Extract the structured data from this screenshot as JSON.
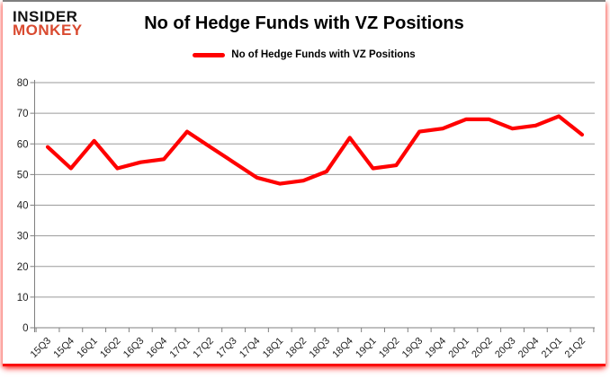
{
  "logo": {
    "line1": "INSIDER",
    "line2": "MONKEY"
  },
  "header": {
    "title": "No of Hedge Funds with VZ Positions"
  },
  "legend": {
    "label": "No of Hedge Funds with VZ Positions"
  },
  "colors": {
    "series_line": "#ff0000",
    "grid": "#9a9a9a",
    "axis": "#7f7f7f",
    "tick_text": "#1f1f1f",
    "logo_black": "#121212",
    "logo_red": "#d94a30",
    "frame_red_glow": "#fb0e0e",
    "frame_top_border": "#7f7f7f"
  },
  "chart_data": {
    "type": "line",
    "title": "No of Hedge Funds with VZ Positions",
    "legend_entries": [
      "No of Hedge Funds with VZ Positions"
    ],
    "legend_position": "top",
    "grid": true,
    "xlabel": "",
    "ylabel": "",
    "ylim": [
      0,
      80
    ],
    "yticks": [
      0,
      10,
      20,
      30,
      40,
      50,
      60,
      70,
      80
    ],
    "categories": [
      "15Q3",
      "15Q4",
      "16Q1",
      "16Q2",
      "16Q3",
      "16Q4",
      "17Q1",
      "17Q2",
      "17Q3",
      "17Q4",
      "18Q1",
      "18Q2",
      "18Q3",
      "18Q4",
      "19Q1",
      "19Q2",
      "19Q3",
      "19Q4",
      "20Q1",
      "20Q2",
      "20Q3",
      "20Q4",
      "21Q1",
      "21Q2"
    ],
    "series": [
      {
        "name": "No of Hedge Funds with VZ Positions",
        "color": "#ff0000",
        "values": [
          59,
          52,
          61,
          52,
          54,
          55,
          64,
          59,
          54,
          49,
          47,
          48,
          51,
          62,
          52,
          53,
          64,
          65,
          68,
          68,
          65,
          66,
          69,
          63
        ]
      }
    ]
  }
}
